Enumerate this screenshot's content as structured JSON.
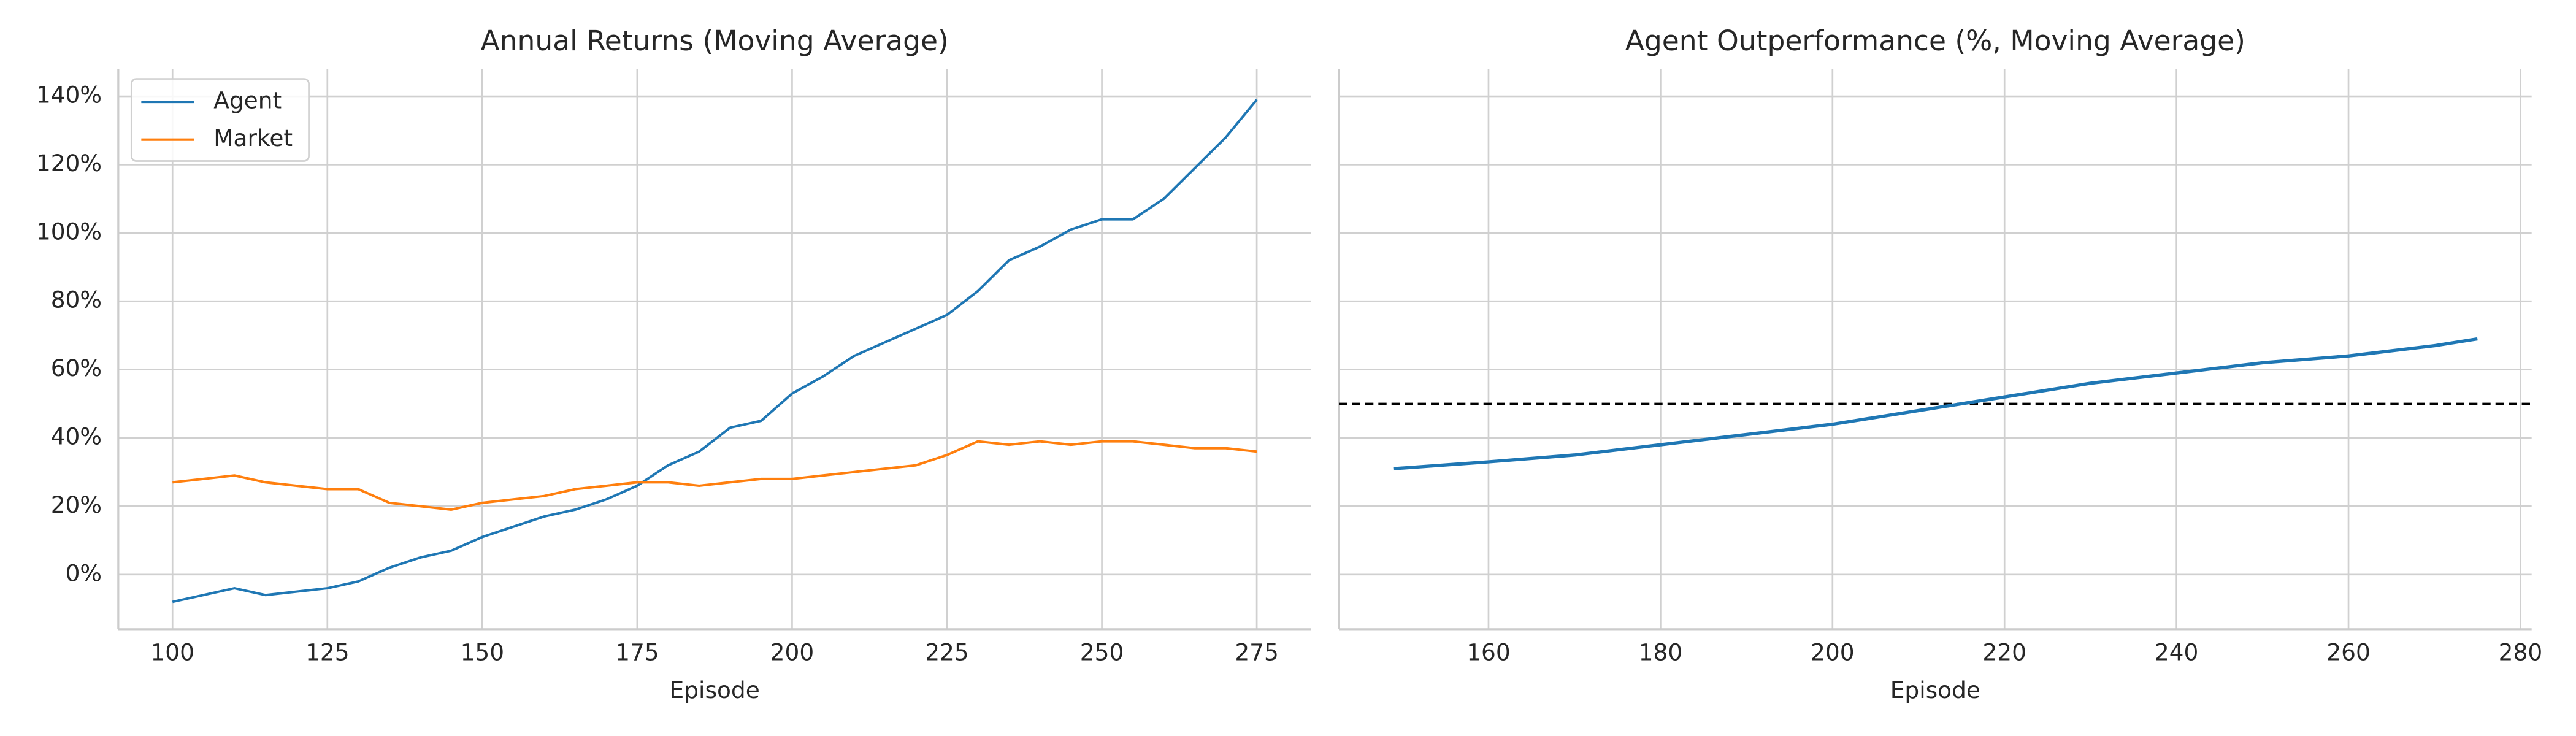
{
  "chart_data": [
    {
      "type": "line",
      "title": "Annual Returns (Moving Average)",
      "xlabel": "Episode",
      "x": [
        100,
        105,
        110,
        115,
        120,
        125,
        130,
        135,
        140,
        145,
        150,
        155,
        160,
        165,
        170,
        175,
        180,
        185,
        190,
        195,
        200,
        205,
        210,
        215,
        220,
        225,
        230,
        235,
        240,
        245,
        250,
        255,
        260,
        265,
        270,
        275
      ],
      "series": [
        {
          "name": "Agent",
          "color": "#1f77b4",
          "values": [
            -8,
            -6,
            -4,
            -6,
            -5,
            -4,
            -2,
            2,
            5,
            7,
            11,
            14,
            17,
            19,
            22,
            26,
            32,
            36,
            43,
            45,
            53,
            58,
            64,
            68,
            72,
            76,
            83,
            92,
            96,
            101,
            104,
            104,
            110,
            119,
            128,
            139
          ]
        },
        {
          "name": "Market",
          "color": "#ff7f0e",
          "values": [
            27,
            28,
            29,
            27,
            26,
            25,
            25,
            21,
            20,
            19,
            21,
            22,
            23,
            25,
            26,
            27,
            27,
            26,
            27,
            28,
            28,
            29,
            30,
            31,
            32,
            35,
            39,
            38,
            39,
            38,
            39,
            39,
            38,
            37,
            37,
            36
          ]
        }
      ],
      "xlim": [
        91.25,
        283.75
      ],
      "ylim": [
        -16,
        148
      ],
      "xticks": [
        100,
        125,
        150,
        175,
        200,
        225,
        250,
        275
      ],
      "yticks": [
        {
          "value": 0,
          "label": "0%"
        },
        {
          "value": 20,
          "label": "20%"
        },
        {
          "value": 40,
          "label": "40%"
        },
        {
          "value": 60,
          "label": "60%"
        },
        {
          "value": 80,
          "label": "80%"
        },
        {
          "value": 100,
          "label": "100%"
        },
        {
          "value": 120,
          "label": "120%"
        },
        {
          "value": 140,
          "label": "140%"
        }
      ],
      "grid": true,
      "legend": "upper-left"
    },
    {
      "type": "line",
      "title": "Agent Outperformance (%, Moving Average)",
      "xlabel": "Episode",
      "x": [
        149,
        160,
        170,
        180,
        190,
        200,
        210,
        220,
        230,
        240,
        250,
        260,
        270,
        275
      ],
      "values": [
        31,
        33,
        35,
        38,
        41,
        44,
        48,
        52,
        56,
        59,
        62,
        64,
        67,
        69
      ],
      "color": "#1f77b4",
      "hline": 50,
      "xlim": [
        142.6,
        281.3
      ],
      "ylim": [
        -16,
        148
      ],
      "xticks": [
        160,
        180,
        200,
        220,
        240,
        260,
        280
      ],
      "yticks": [
        0,
        20,
        40,
        60,
        80,
        100,
        120,
        140
      ],
      "show_ytick_labels": false,
      "grid": true
    }
  ]
}
